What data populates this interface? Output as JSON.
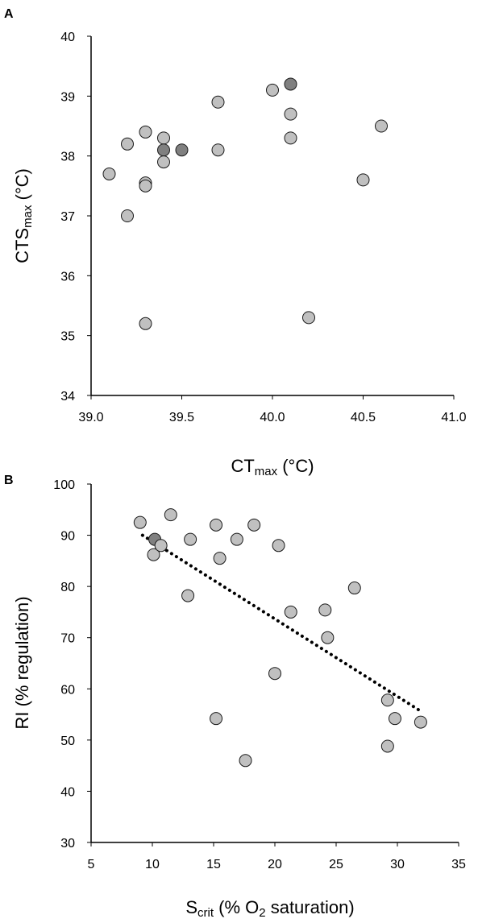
{
  "chart_data": [
    {
      "panel": "A",
      "type": "scatter",
      "xlabel": "CT",
      "xlabel_sub": "max",
      "xlabel_unit": " (°C)",
      "ylabel": "CTS",
      "ylabel_sub": "max",
      "ylabel_unit": " (°C)",
      "xlim": [
        39.0,
        41.0
      ],
      "ylim": [
        34,
        40
      ],
      "xticks": [
        "39.0",
        "39.5",
        "40.0",
        "40.5",
        "41.0"
      ],
      "yticks": [
        "34",
        "35",
        "36",
        "37",
        "38",
        "39",
        "40"
      ],
      "grid": false,
      "marker_color": "#c0c0c0",
      "marker_dark_color": "#808080",
      "points": [
        {
          "x": 39.1,
          "y": 37.7
        },
        {
          "x": 39.2,
          "y": 38.2
        },
        {
          "x": 39.2,
          "y": 37.0
        },
        {
          "x": 39.3,
          "y": 38.4
        },
        {
          "x": 39.3,
          "y": 37.55
        },
        {
          "x": 39.3,
          "y": 37.5
        },
        {
          "x": 39.3,
          "y": 35.2
        },
        {
          "x": 39.4,
          "y": 38.3
        },
        {
          "x": 39.4,
          "y": 38.1,
          "overlap": true
        },
        {
          "x": 39.4,
          "y": 37.9
        },
        {
          "x": 39.5,
          "y": 38.1,
          "overlap": true
        },
        {
          "x": 39.7,
          "y": 38.9
        },
        {
          "x": 39.7,
          "y": 38.1
        },
        {
          "x": 40.0,
          "y": 39.1
        },
        {
          "x": 40.1,
          "y": 39.2,
          "overlap": true
        },
        {
          "x": 40.1,
          "y": 38.7
        },
        {
          "x": 40.1,
          "y": 38.3
        },
        {
          "x": 40.2,
          "y": 35.3
        },
        {
          "x": 40.5,
          "y": 37.6
        },
        {
          "x": 40.6,
          "y": 38.5
        }
      ]
    },
    {
      "panel": "B",
      "type": "scatter",
      "xlabel": "S",
      "xlabel_sub": "crit",
      "xlabel_mid": " (% O",
      "xlabel_sub2": "2",
      "xlabel_unit": " saturation)",
      "ylabel": "RI (% regulation)",
      "xlim": [
        5,
        35
      ],
      "ylim": [
        30,
        100
      ],
      "xticks": [
        "5",
        "10",
        "15",
        "20",
        "25",
        "30",
        "35"
      ],
      "yticks": [
        "30",
        "40",
        "50",
        "60",
        "70",
        "80",
        "90",
        "100"
      ],
      "grid": false,
      "marker_color": "#c0c0c0",
      "marker_dark_color": "#808080",
      "trendline": {
        "style": "dotted",
        "x": [
          9.2,
          32
        ],
        "y": [
          90,
          55.5
        ]
      },
      "points": [
        {
          "x": 9.0,
          "y": 92.5
        },
        {
          "x": 10.2,
          "y": 89.2,
          "overlap": true
        },
        {
          "x": 10.1,
          "y": 86.2
        },
        {
          "x": 10.7,
          "y": 88.0
        },
        {
          "x": 11.5,
          "y": 94.0
        },
        {
          "x": 12.9,
          "y": 78.2
        },
        {
          "x": 13.1,
          "y": 89.2
        },
        {
          "x": 15.2,
          "y": 92.0
        },
        {
          "x": 15.5,
          "y": 85.5
        },
        {
          "x": 15.2,
          "y": 54.2
        },
        {
          "x": 16.9,
          "y": 89.2
        },
        {
          "x": 17.6,
          "y": 46.0
        },
        {
          "x": 18.3,
          "y": 92.0
        },
        {
          "x": 20.0,
          "y": 63.0
        },
        {
          "x": 20.3,
          "y": 88.0
        },
        {
          "x": 21.3,
          "y": 75.0
        },
        {
          "x": 24.1,
          "y": 75.4
        },
        {
          "x": 24.3,
          "y": 70.0
        },
        {
          "x": 26.5,
          "y": 79.7
        },
        {
          "x": 29.2,
          "y": 57.8
        },
        {
          "x": 29.2,
          "y": 48.8
        },
        {
          "x": 29.8,
          "y": 54.2
        },
        {
          "x": 31.9,
          "y": 53.5
        }
      ]
    }
  ]
}
